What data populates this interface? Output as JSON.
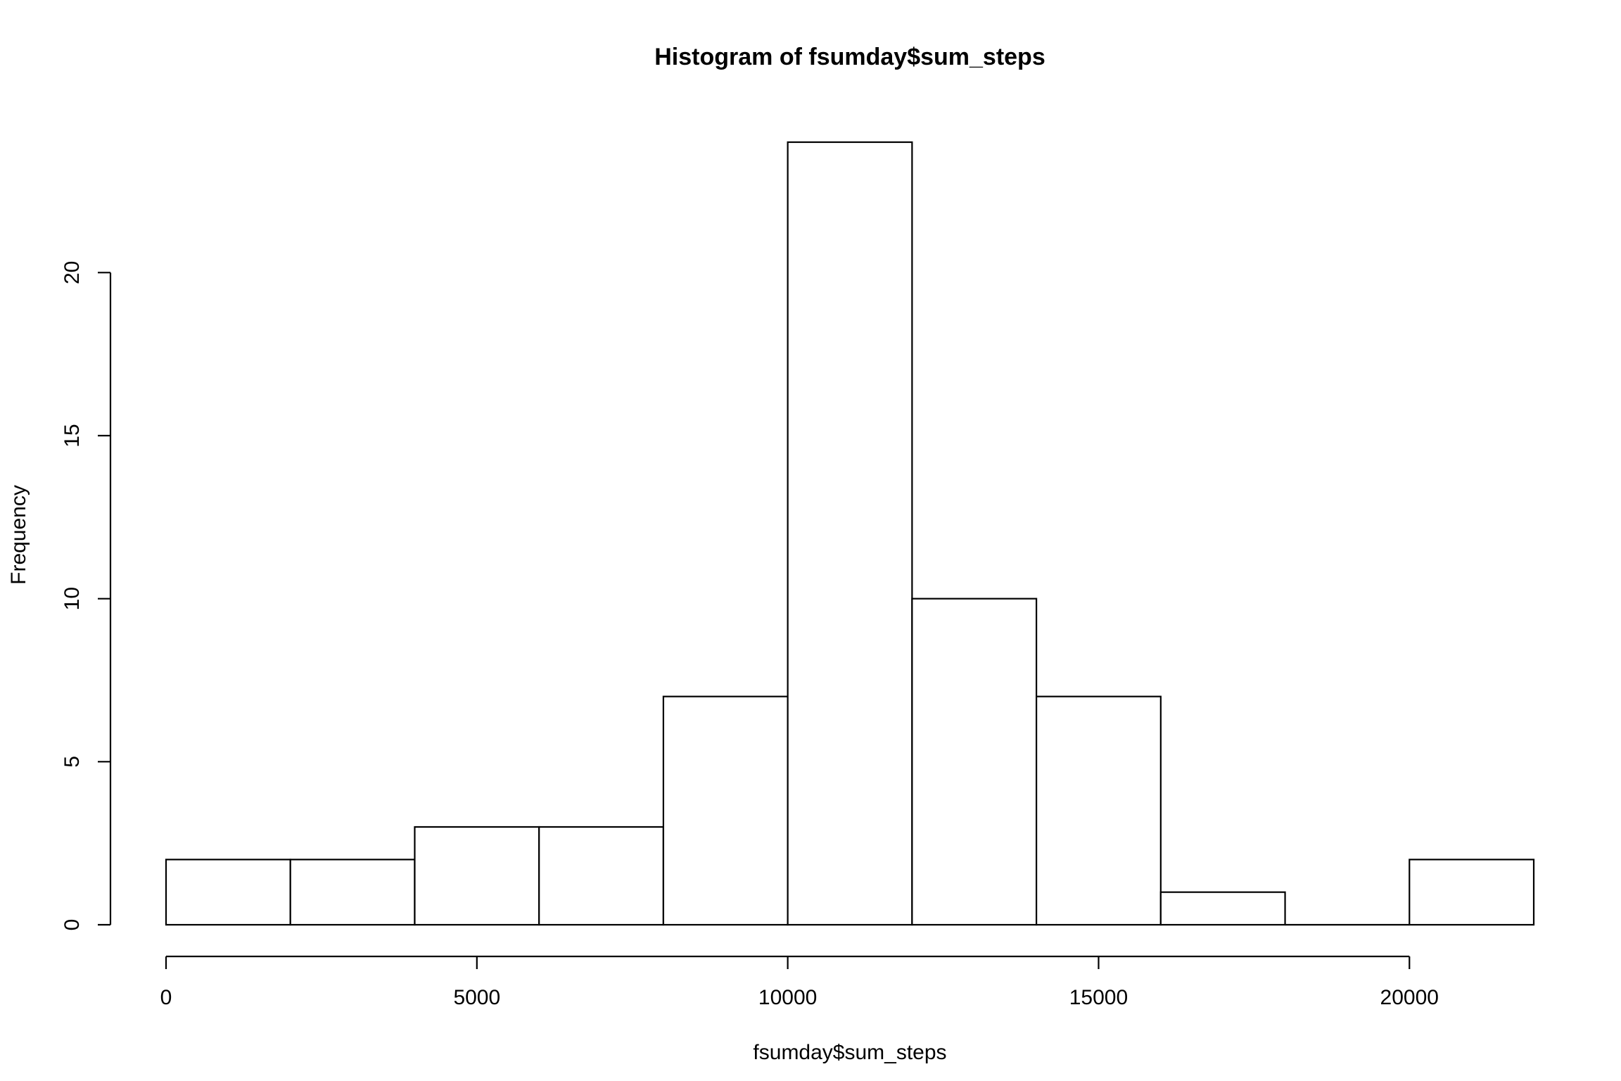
{
  "chart_data": {
    "type": "bar",
    "title": "Histogram of fsumday$sum_steps",
    "xlabel": "fsumday$sum_steps",
    "ylabel": "Frequency",
    "bins": [
      {
        "from": 0,
        "to": 2000,
        "count": 2
      },
      {
        "from": 2000,
        "to": 4000,
        "count": 2
      },
      {
        "from": 4000,
        "to": 6000,
        "count": 3
      },
      {
        "from": 6000,
        "to": 8000,
        "count": 3
      },
      {
        "from": 8000,
        "to": 10000,
        "count": 7
      },
      {
        "from": 10000,
        "to": 12000,
        "count": 24
      },
      {
        "from": 12000,
        "to": 14000,
        "count": 10
      },
      {
        "from": 14000,
        "to": 16000,
        "count": 7
      },
      {
        "from": 16000,
        "to": 18000,
        "count": 1
      },
      {
        "from": 18000,
        "to": 20000,
        "count": 0
      },
      {
        "from": 20000,
        "to": 22000,
        "count": 2
      }
    ],
    "xlim": [
      0,
      22000
    ],
    "ylim": [
      0,
      24
    ],
    "xticks": [
      0,
      5000,
      10000,
      15000,
      20000
    ],
    "xtick_labels": [
      "0",
      "5000",
      "10000",
      "15000",
      "20000"
    ],
    "yticks": [
      0,
      5,
      10,
      15,
      20
    ],
    "ytick_labels": [
      "0",
      "5",
      "10",
      "15",
      "20"
    ],
    "grid": false,
    "legend": "none",
    "colors": {
      "bar_fill": "#ffffff",
      "bar_stroke": "#000000"
    }
  }
}
